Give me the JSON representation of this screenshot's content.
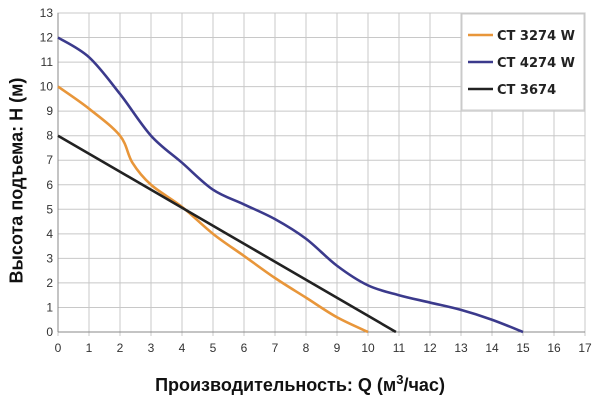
{
  "chart_data": {
    "type": "line",
    "title": "",
    "xlabel": "Производительность: Q (м",
    "xlabel_sup": "3",
    "xlabel_tail": "/час)",
    "ylabel": "Высота подъема: Н (м)",
    "xlim": [
      0,
      17
    ],
    "ylim": [
      0,
      13
    ],
    "x_ticks": [
      0,
      1,
      2,
      3,
      4,
      5,
      6,
      7,
      8,
      9,
      10,
      11,
      12,
      13,
      14,
      15,
      16,
      17
    ],
    "y_ticks": [
      0,
      1,
      2,
      3,
      4,
      5,
      6,
      7,
      8,
      9,
      10,
      11,
      12,
      13
    ],
    "grid": true,
    "legend_position": "top-right",
    "series": [
      {
        "name": "CT 3274 W",
        "color": "#e8963a",
        "points": [
          [
            0,
            10
          ],
          [
            1,
            9.1
          ],
          [
            2,
            8
          ],
          [
            2.4,
            6.9
          ],
          [
            3,
            6
          ],
          [
            4,
            5.1
          ],
          [
            5,
            4
          ],
          [
            6,
            3.1
          ],
          [
            7,
            2.2
          ],
          [
            8,
            1.4
          ],
          [
            9,
            0.6
          ],
          [
            10,
            0
          ]
        ]
      },
      {
        "name": "CT 4274 W",
        "color": "#3b3a8c",
        "points": [
          [
            0,
            12
          ],
          [
            1,
            11.2
          ],
          [
            2,
            9.7
          ],
          [
            3,
            8
          ],
          [
            4,
            6.9
          ],
          [
            5,
            5.8
          ],
          [
            6,
            5.2
          ],
          [
            7,
            4.6
          ],
          [
            8,
            3.8
          ],
          [
            9,
            2.7
          ],
          [
            10,
            1.9
          ],
          [
            11,
            1.5
          ],
          [
            12,
            1.2
          ],
          [
            13,
            0.9
          ],
          [
            14,
            0.5
          ],
          [
            15,
            0
          ]
        ]
      },
      {
        "name": "CT 3674",
        "color": "#222222",
        "points": [
          [
            0,
            8
          ],
          [
            10.9,
            0
          ]
        ]
      }
    ]
  }
}
